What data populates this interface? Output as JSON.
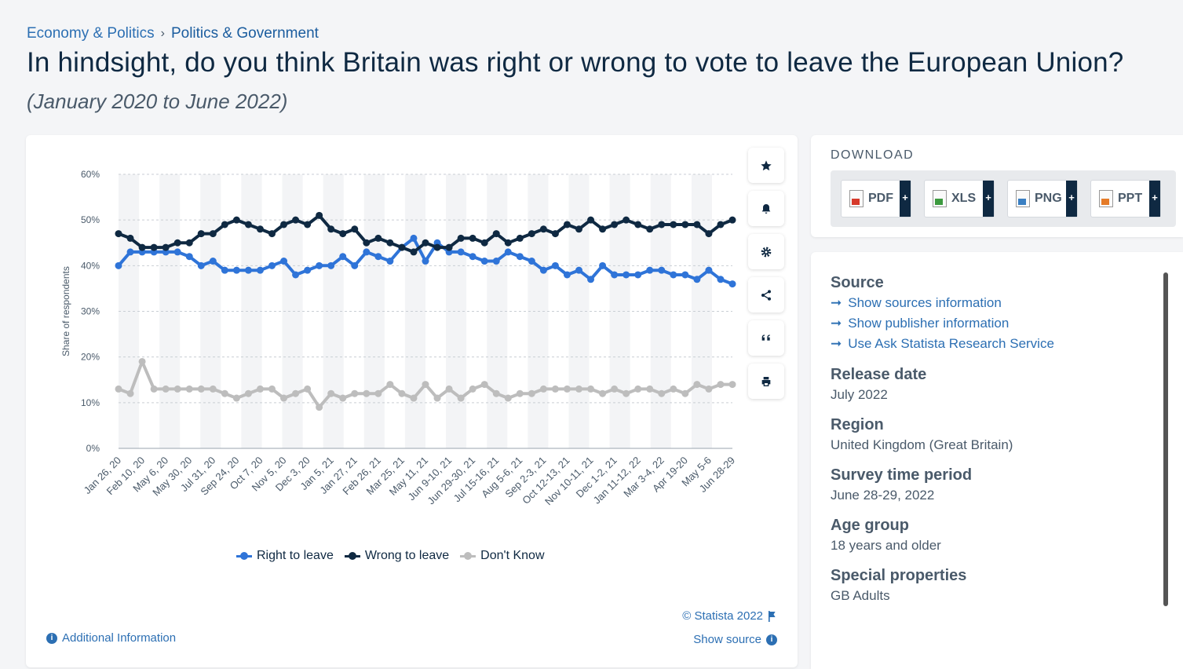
{
  "breadcrumb": {
    "first": "Economy & Politics",
    "separator": "›",
    "second": "Politics & Government"
  },
  "title": "In hindsight, do you think Britain was right or wrong to vote to leave the European Union?",
  "subtitle": "(January 2020 to June 2022)",
  "tools": [
    "star-icon",
    "bell-icon",
    "gear-icon",
    "share-icon",
    "quote-icon",
    "print-icon"
  ],
  "legend": [
    "Right to leave",
    "Wrong to leave",
    "Don't Know"
  ],
  "copyright": "© Statista 2022",
  "show_source": "Show source",
  "additional_info": "Additional Information",
  "download": {
    "title": "DOWNLOAD",
    "buttons": [
      {
        "label": "PDF",
        "icon": "pdf-file-icon"
      },
      {
        "label": "XLS",
        "icon": "xls-file-icon"
      },
      {
        "label": "PNG",
        "icon": "png-file-icon"
      },
      {
        "label": "PPT",
        "icon": "ppt-file-icon"
      }
    ],
    "plus": "+"
  },
  "info": {
    "source_label": "Source",
    "links": [
      "Show sources information",
      "Show publisher information",
      "Use Ask Statista Research Service"
    ],
    "release_label": "Release date",
    "release_value": "July 2022",
    "region_label": "Region",
    "region_value": "United Kingdom (Great Britain)",
    "survey_label": "Survey time period",
    "survey_value": "June 28-29, 2022",
    "age_label": "Age group",
    "age_value": "18 years and older",
    "special_label": "Special properties",
    "special_value": "GB Adults"
  },
  "colors": {
    "right": "#2f74d8",
    "wrong": "#0f2942",
    "dontknow": "#bdbdbd",
    "link": "#2c6fb3"
  },
  "chart_data": {
    "type": "line",
    "ylabel": "Share of respondents",
    "ylim": [
      0,
      60
    ],
    "yticks": [
      "0%",
      "10%",
      "20%",
      "30%",
      "40%",
      "50%",
      "60%"
    ],
    "x_tick_labels": [
      "Jan 26, 20",
      "Feb 10, 20",
      "May 6, 20",
      "May 30, 20",
      "Jul 31, 20",
      "Sep 24, 20",
      "Oct 7, 20",
      "Nov 5, 20",
      "Dec 3, 20",
      "Jan 5, 21",
      "Jan 27, 21",
      "Feb 26, 21",
      "Mar 25, 21",
      "May 11, 21",
      "Jun 9-10, 21",
      "Jun 29-30, 21",
      "Jul 15-16, 21",
      "Aug 5-6, 21",
      "Sep 2-3, 21",
      "Oct 12-13, 21",
      "Nov 10-11, 21",
      "Dec 1-2, 21",
      "Jan 11-12, 22",
      "Mar 3-4, 22",
      "Apr 19-20",
      "May 5-6",
      "Jun 28-29"
    ],
    "series": [
      {
        "name": "Right to leave",
        "values": [
          40,
          43,
          43,
          43,
          43,
          43,
          42,
          40,
          41,
          39,
          39,
          39,
          39,
          40,
          41,
          38,
          39,
          40,
          40,
          42,
          40,
          43,
          42,
          41,
          44,
          46,
          41,
          45,
          43,
          43,
          42,
          41,
          41,
          43,
          42,
          41,
          39,
          40,
          38,
          39,
          37,
          40,
          38,
          38,
          38,
          39,
          39,
          38,
          38,
          37,
          39,
          37,
          36
        ]
      },
      {
        "name": "Wrong to leave",
        "values": [
          47,
          46,
          44,
          44,
          44,
          45,
          45,
          47,
          47,
          49,
          50,
          49,
          48,
          47,
          49,
          50,
          49,
          51,
          48,
          47,
          48,
          45,
          46,
          45,
          44,
          43,
          45,
          44,
          44,
          46,
          46,
          45,
          47,
          45,
          46,
          47,
          48,
          47,
          49,
          48,
          50,
          48,
          49,
          50,
          49,
          48,
          49,
          49,
          49,
          49,
          47,
          49,
          50
        ]
      },
      {
        "name": "Don't Know",
        "values": [
          13,
          12,
          19,
          13,
          13,
          13,
          13,
          13,
          13,
          12,
          11,
          12,
          13,
          13,
          11,
          12,
          13,
          9,
          12,
          11,
          12,
          12,
          12,
          14,
          12,
          11,
          14,
          11,
          13,
          11,
          13,
          14,
          12,
          11,
          12,
          12,
          13,
          13,
          13,
          13,
          13,
          12,
          13,
          12,
          13,
          13,
          12,
          13,
          12,
          14,
          13,
          14,
          14
        ]
      }
    ]
  }
}
